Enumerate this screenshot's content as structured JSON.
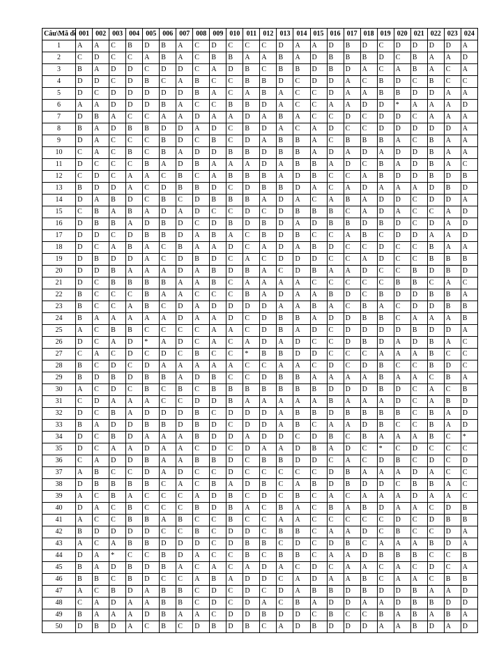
{
  "header_label": "Câu\\Mã đề",
  "codes": [
    "001",
    "002",
    "003",
    "004",
    "005",
    "006",
    "007",
    "008",
    "009",
    "010",
    "011",
    "012",
    "013",
    "014",
    "015",
    "016",
    "017",
    "018",
    "019",
    "020",
    "021",
    "022",
    "023",
    "024"
  ],
  "rows": [
    {
      "q": "1",
      "a": [
        "A",
        "A",
        "C",
        "B",
        "D",
        "B",
        "A",
        "C",
        "D",
        "C",
        "C",
        "C",
        "D",
        "A",
        "A",
        "D",
        "B",
        "D",
        "C",
        "D",
        "D",
        "D",
        "D",
        "A"
      ]
    },
    {
      "q": "2",
      "a": [
        "C",
        "D",
        "C",
        "C",
        "A",
        "B",
        "A",
        "C",
        "B",
        "B",
        "A",
        "A",
        "B",
        "A",
        "D",
        "B",
        "B",
        "B",
        "D",
        "C",
        "B",
        "A",
        "A",
        "D"
      ]
    },
    {
      "q": "3",
      "a": [
        "B",
        "A",
        "D",
        "D",
        "C",
        "D",
        "D",
        "C",
        "A",
        "D",
        "B",
        "C",
        "B",
        "B",
        "D",
        "B",
        "D",
        "A",
        "C",
        "A",
        "B",
        "A",
        "C",
        "A"
      ]
    },
    {
      "q": "4",
      "a": [
        "D",
        "D",
        "C",
        "D",
        "B",
        "C",
        "A",
        "B",
        "C",
        "C",
        "B",
        "B",
        "D",
        "C",
        "D",
        "D",
        "A",
        "C",
        "B",
        "D",
        "C",
        "B",
        "C",
        "C"
      ]
    },
    {
      "q": "5",
      "a": [
        "D",
        "C",
        "D",
        "D",
        "D",
        "D",
        "D",
        "B",
        "A",
        "C",
        "A",
        "B",
        "A",
        "C",
        "C",
        "D",
        "A",
        "A",
        "B",
        "B",
        "D",
        "D",
        "A",
        "A"
      ]
    },
    {
      "q": "6",
      "a": [
        "A",
        "A",
        "D",
        "D",
        "D",
        "B",
        "A",
        "C",
        "C",
        "B",
        "B",
        "D",
        "A",
        "C",
        "C",
        "A",
        "A",
        "D",
        "D",
        "*",
        "A",
        "A",
        "A",
        "D"
      ]
    },
    {
      "q": "7",
      "a": [
        "D",
        "B",
        "A",
        "C",
        "C",
        "A",
        "A",
        "D",
        "A",
        "A",
        "D",
        "A",
        "B",
        "A",
        "C",
        "C",
        "D",
        "C",
        "D",
        "D",
        "C",
        "A",
        "A",
        "A"
      ]
    },
    {
      "q": "8",
      "a": [
        "B",
        "A",
        "D",
        "B",
        "B",
        "D",
        "D",
        "A",
        "D",
        "C",
        "B",
        "D",
        "A",
        "C",
        "A",
        "D",
        "C",
        "C",
        "D",
        "D",
        "D",
        "D",
        "D",
        "A"
      ]
    },
    {
      "q": "9",
      "a": [
        "D",
        "A",
        "C",
        "C",
        "C",
        "B",
        "D",
        "C",
        "B",
        "C",
        "D",
        "A",
        "B",
        "B",
        "A",
        "C",
        "B",
        "B",
        "B",
        "A",
        "C",
        "B",
        "A",
        "A"
      ]
    },
    {
      "q": "10",
      "a": [
        "C",
        "A",
        "C",
        "B",
        "C",
        "B",
        "A",
        "D",
        "D",
        "B",
        "B",
        "D",
        "B",
        "B",
        "A",
        "D",
        "A",
        "D",
        "A",
        "D",
        "D",
        "B",
        "A",
        "A"
      ]
    },
    {
      "q": "11",
      "a": [
        "D",
        "C",
        "C",
        "C",
        "B",
        "A",
        "D",
        "B",
        "A",
        "A",
        "A",
        "D",
        "A",
        "B",
        "B",
        "A",
        "D",
        "C",
        "B",
        "A",
        "D",
        "B",
        "A",
        "C"
      ]
    },
    {
      "q": "12",
      "a": [
        "C",
        "D",
        "C",
        "A",
        "A",
        "C",
        "B",
        "C",
        "A",
        "B",
        "B",
        "B",
        "A",
        "D",
        "B",
        "C",
        "C",
        "A",
        "B",
        "D",
        "D",
        "B",
        "D",
        "B"
      ]
    },
    {
      "q": "13",
      "a": [
        "B",
        "D",
        "D",
        "A",
        "C",
        "D",
        "B",
        "B",
        "D",
        "C",
        "D",
        "B",
        "B",
        "D",
        "A",
        "C",
        "A",
        "D",
        "A",
        "A",
        "A",
        "D",
        "B",
        "D"
      ]
    },
    {
      "q": "14",
      "a": [
        "D",
        "A",
        "B",
        "D",
        "C",
        "B",
        "C",
        "D",
        "B",
        "B",
        "B",
        "A",
        "D",
        "A",
        "C",
        "A",
        "B",
        "A",
        "D",
        "D",
        "C",
        "D",
        "D",
        "A"
      ]
    },
    {
      "q": "15",
      "a": [
        "C",
        "B",
        "A",
        "B",
        "A",
        "D",
        "A",
        "D",
        "C",
        "C",
        "D",
        "C",
        "D",
        "B",
        "B",
        "B",
        "C",
        "A",
        "D",
        "A",
        "C",
        "C",
        "A",
        "D"
      ]
    },
    {
      "q": "16",
      "a": [
        "D",
        "B",
        "B",
        "A",
        "D",
        "B",
        "D",
        "C",
        "D",
        "B",
        "D",
        "B",
        "D",
        "A",
        "D",
        "B",
        "B",
        "D",
        "B",
        "D",
        "C",
        "D",
        "A",
        "D"
      ]
    },
    {
      "q": "17",
      "a": [
        "D",
        "D",
        "C",
        "D",
        "B",
        "B",
        "D",
        "A",
        "B",
        "A",
        "C",
        "B",
        "D",
        "B",
        "C",
        "C",
        "A",
        "B",
        "C",
        "D",
        "D",
        "A",
        "A",
        "D"
      ]
    },
    {
      "q": "18",
      "a": [
        "D",
        "C",
        "A",
        "B",
        "A",
        "C",
        "B",
        "A",
        "A",
        "D",
        "C",
        "A",
        "D",
        "A",
        "B",
        "D",
        "C",
        "C",
        "D",
        "C",
        "C",
        "B",
        "A",
        "A"
      ]
    },
    {
      "q": "19",
      "a": [
        "D",
        "B",
        "D",
        "D",
        "A",
        "C",
        "D",
        "B",
        "D",
        "C",
        "A",
        "C",
        "D",
        "D",
        "D",
        "C",
        "C",
        "A",
        "D",
        "C",
        "C",
        "B",
        "B",
        "B"
      ]
    },
    {
      "q": "20",
      "a": [
        "D",
        "D",
        "B",
        "A",
        "A",
        "A",
        "D",
        "A",
        "B",
        "D",
        "B",
        "A",
        "C",
        "D",
        "B",
        "A",
        "A",
        "D",
        "C",
        "C",
        "B",
        "D",
        "B",
        "D"
      ]
    },
    {
      "q": "21",
      "a": [
        "D",
        "C",
        "B",
        "B",
        "B",
        "B",
        "A",
        "A",
        "B",
        "C",
        "A",
        "A",
        "A",
        "A",
        "C",
        "C",
        "C",
        "C",
        "C",
        "B",
        "B",
        "C",
        "A",
        "C"
      ]
    },
    {
      "q": "22",
      "a": [
        "B",
        "C",
        "C",
        "C",
        "B",
        "A",
        "A",
        "C",
        "C",
        "C",
        "B",
        "A",
        "D",
        "A",
        "A",
        "B",
        "D",
        "C",
        "B",
        "D",
        "D",
        "B",
        "B",
        "A"
      ]
    },
    {
      "q": "23",
      "a": [
        "B",
        "C",
        "C",
        "A",
        "B",
        "C",
        "D",
        "A",
        "D",
        "D",
        "D",
        "D",
        "A",
        "A",
        "B",
        "A",
        "C",
        "B",
        "A",
        "C",
        "D",
        "D",
        "B",
        "B"
      ]
    },
    {
      "q": "24",
      "a": [
        "B",
        "A",
        "A",
        "A",
        "A",
        "A",
        "D",
        "A",
        "A",
        "D",
        "C",
        "D",
        "B",
        "B",
        "A",
        "D",
        "D",
        "B",
        "B",
        "C",
        "A",
        "A",
        "A",
        "B"
      ]
    },
    {
      "q": "25",
      "a": [
        "A",
        "C",
        "B",
        "B",
        "C",
        "C",
        "C",
        "C",
        "A",
        "A",
        "C",
        "D",
        "B",
        "A",
        "D",
        "C",
        "D",
        "D",
        "D",
        "D",
        "B",
        "D",
        "D",
        "A"
      ]
    },
    {
      "q": "26",
      "a": [
        "D",
        "C",
        "A",
        "D",
        "*",
        "A",
        "D",
        "C",
        "A",
        "C",
        "A",
        "D",
        "A",
        "D",
        "C",
        "C",
        "D",
        "B",
        "D",
        "A",
        "D",
        "B",
        "A",
        "C"
      ]
    },
    {
      "q": "27",
      "a": [
        "C",
        "A",
        "C",
        "D",
        "C",
        "D",
        "C",
        "B",
        "C",
        "C",
        "*",
        "B",
        "B",
        "D",
        "D",
        "C",
        "C",
        "C",
        "A",
        "A",
        "A",
        "B",
        "C",
        "C"
      ]
    },
    {
      "q": "28",
      "a": [
        "B",
        "C",
        "D",
        "C",
        "D",
        "A",
        "A",
        "A",
        "A",
        "A",
        "C",
        "C",
        "A",
        "A",
        "C",
        "D",
        "C",
        "D",
        "B",
        "C",
        "C",
        "B",
        "D",
        "C"
      ]
    },
    {
      "q": "29",
      "a": [
        "B",
        "D",
        "B",
        "D",
        "B",
        "B",
        "A",
        "D",
        "B",
        "C",
        "C",
        "D",
        "B",
        "B",
        "A",
        "A",
        "A",
        "A",
        "B",
        "A",
        "A",
        "C",
        "B",
        "A"
      ]
    },
    {
      "q": "30",
      "a": [
        "A",
        "C",
        "D",
        "C",
        "B",
        "C",
        "B",
        "C",
        "B",
        "B",
        "B",
        "B",
        "B",
        "B",
        "B",
        "D",
        "D",
        "D",
        "B",
        "D",
        "C",
        "A",
        "C",
        "B"
      ]
    },
    {
      "q": "31",
      "a": [
        "C",
        "D",
        "A",
        "A",
        "A",
        "C",
        "C",
        "D",
        "D",
        "B",
        "A",
        "A",
        "A",
        "A",
        "A",
        "B",
        "A",
        "A",
        "A",
        "D",
        "C",
        "A",
        "B",
        "D"
      ]
    },
    {
      "q": "32",
      "a": [
        "D",
        "C",
        "B",
        "A",
        "D",
        "D",
        "D",
        "B",
        "C",
        "D",
        "D",
        "D",
        "A",
        "B",
        "B",
        "D",
        "B",
        "B",
        "B",
        "B",
        "C",
        "B",
        "A",
        "D"
      ]
    },
    {
      "q": "33",
      "a": [
        "B",
        "A",
        "D",
        "D",
        "B",
        "B",
        "D",
        "B",
        "D",
        "C",
        "D",
        "D",
        "A",
        "B",
        "C",
        "A",
        "A",
        "D",
        "B",
        "C",
        "C",
        "B",
        "A",
        "D"
      ]
    },
    {
      "q": "34",
      "a": [
        "D",
        "C",
        "B",
        "D",
        "A",
        "A",
        "A",
        "B",
        "D",
        "D",
        "A",
        "D",
        "D",
        "C",
        "D",
        "B",
        "C",
        "B",
        "A",
        "A",
        "A",
        "B",
        "C",
        "*"
      ]
    },
    {
      "q": "35",
      "a": [
        "D",
        "C",
        "A",
        "A",
        "D",
        "A",
        "A",
        "C",
        "D",
        "C",
        "D",
        "A",
        "A",
        "D",
        "B",
        "A",
        "D",
        "C",
        "*",
        "C",
        "D",
        "C",
        "C",
        "C"
      ]
    },
    {
      "q": "36",
      "a": [
        "C",
        "A",
        "D",
        "D",
        "B",
        "A",
        "A",
        "B",
        "B",
        "D",
        "C",
        "B",
        "B",
        "D",
        "D",
        "C",
        "A",
        "C",
        "D",
        "B",
        "C",
        "D",
        "C",
        "D"
      ]
    },
    {
      "q": "37",
      "a": [
        "A",
        "B",
        "C",
        "C",
        "D",
        "A",
        "D",
        "C",
        "C",
        "D",
        "C",
        "C",
        "C",
        "C",
        "C",
        "D",
        "B",
        "A",
        "A",
        "A",
        "D",
        "A",
        "C",
        "C"
      ]
    },
    {
      "q": "38",
      "a": [
        "D",
        "B",
        "B",
        "B",
        "B",
        "C",
        "A",
        "C",
        "B",
        "A",
        "D",
        "B",
        "C",
        "A",
        "B",
        "D",
        "B",
        "D",
        "D",
        "C",
        "B",
        "B",
        "A",
        "C"
      ]
    },
    {
      "q": "39",
      "a": [
        "A",
        "C",
        "B",
        "A",
        "C",
        "C",
        "C",
        "A",
        "D",
        "B",
        "C",
        "D",
        "C",
        "B",
        "C",
        "A",
        "C",
        "A",
        "A",
        "A",
        "D",
        "A",
        "A",
        "C"
      ]
    },
    {
      "q": "40",
      "a": [
        "D",
        "A",
        "C",
        "B",
        "C",
        "C",
        "C",
        "B",
        "D",
        "B",
        "A",
        "C",
        "B",
        "A",
        "C",
        "B",
        "A",
        "B",
        "D",
        "A",
        "A",
        "C",
        "D",
        "B"
      ]
    },
    {
      "q": "41",
      "a": [
        "A",
        "C",
        "C",
        "B",
        "B",
        "A",
        "B",
        "C",
        "C",
        "B",
        "C",
        "C",
        "A",
        "A",
        "C",
        "C",
        "C",
        "C",
        "C",
        "D",
        "C",
        "D",
        "B",
        "B"
      ]
    },
    {
      "q": "42",
      "a": [
        "B",
        "D",
        "D",
        "D",
        "D",
        "C",
        "C",
        "B",
        "C",
        "D",
        "D",
        "C",
        "B",
        "B",
        "C",
        "A",
        "A",
        "D",
        "C",
        "B",
        "C",
        "C",
        "D",
        "A"
      ]
    },
    {
      "q": "43",
      "a": [
        "A",
        "C",
        "A",
        "B",
        "B",
        "D",
        "D",
        "D",
        "C",
        "D",
        "B",
        "B",
        "C",
        "D",
        "C",
        "D",
        "B",
        "C",
        "A",
        "A",
        "A",
        "B",
        "D",
        "A"
      ]
    },
    {
      "q": "44",
      "a": [
        "D",
        "A",
        "*",
        "C",
        "C",
        "B",
        "D",
        "A",
        "C",
        "C",
        "B",
        "C",
        "B",
        "B",
        "C",
        "A",
        "A",
        "D",
        "B",
        "B",
        "B",
        "C",
        "C",
        "B"
      ]
    },
    {
      "q": "45",
      "a": [
        "B",
        "A",
        "D",
        "B",
        "D",
        "B",
        "A",
        "C",
        "A",
        "C",
        "A",
        "D",
        "A",
        "C",
        "D",
        "C",
        "A",
        "A",
        "C",
        "A",
        "C",
        "D",
        "C",
        "A"
      ]
    },
    {
      "q": "46",
      "a": [
        "B",
        "B",
        "C",
        "B",
        "D",
        "C",
        "C",
        "A",
        "B",
        "A",
        "D",
        "D",
        "C",
        "A",
        "D",
        "A",
        "A",
        "B",
        "C",
        "A",
        "A",
        "C",
        "B",
        "B"
      ]
    },
    {
      "q": "47",
      "a": [
        "A",
        "C",
        "B",
        "D",
        "A",
        "B",
        "B",
        "C",
        "D",
        "C",
        "D",
        "C",
        "D",
        "A",
        "B",
        "B",
        "D",
        "B",
        "D",
        "D",
        "B",
        "A",
        "A",
        "D"
      ]
    },
    {
      "q": "48",
      "a": [
        "C",
        "A",
        "D",
        "A",
        "A",
        "B",
        "B",
        "C",
        "D",
        "C",
        "D",
        "A",
        "C",
        "B",
        "A",
        "D",
        "D",
        "A",
        "A",
        "D",
        "B",
        "B",
        "D",
        "D"
      ]
    },
    {
      "q": "49",
      "a": [
        "B",
        "A",
        "A",
        "A",
        "D",
        "B",
        "A",
        "A",
        "C",
        "D",
        "D",
        "B",
        "D",
        "D",
        "C",
        "B",
        "C",
        "C",
        "B",
        "A",
        "B",
        "A",
        "B",
        "A"
      ]
    },
    {
      "q": "50",
      "a": [
        "D",
        "B",
        "D",
        "A",
        "C",
        "B",
        "C",
        "D",
        "B",
        "D",
        "B",
        "C",
        "A",
        "D",
        "B",
        "D",
        "D",
        "D",
        "A",
        "A",
        "B",
        "D",
        "A",
        "D"
      ]
    }
  ]
}
